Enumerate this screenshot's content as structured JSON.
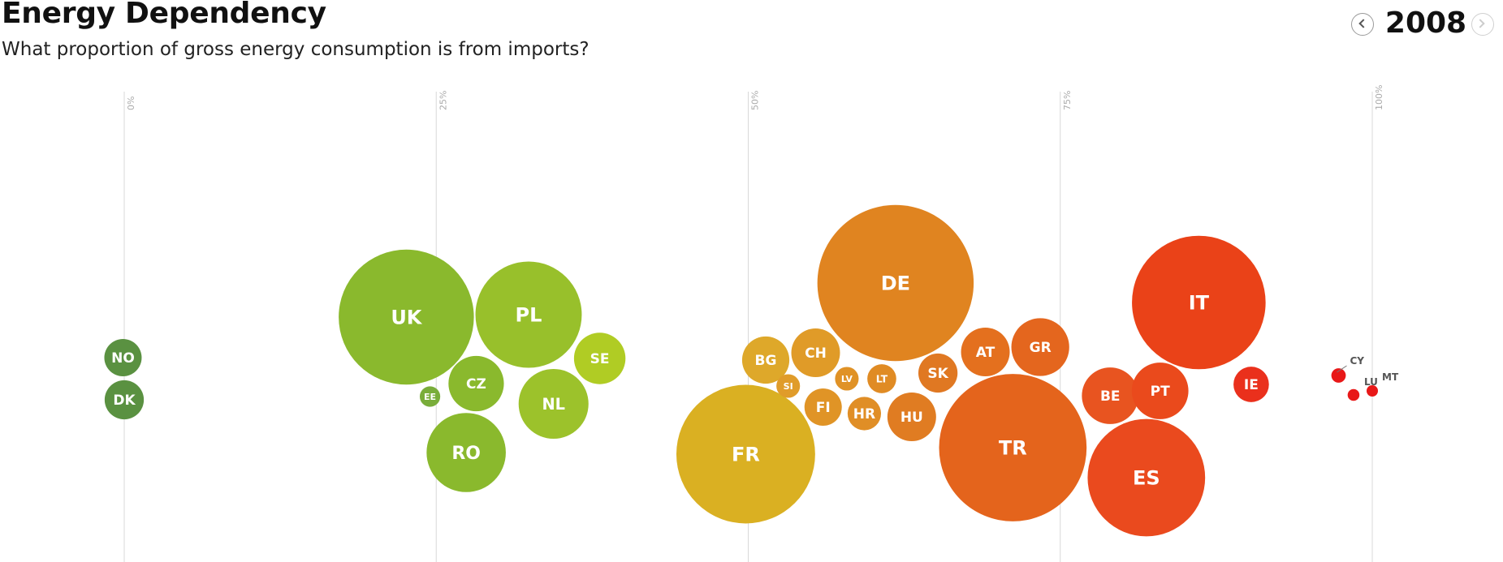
{
  "header": {
    "title": "Energy Dependency",
    "subtitle": "What proportion of gross energy consumption is from imports?"
  },
  "year_nav": {
    "year": "2008",
    "prev_icon": "chevron-left-icon",
    "next_icon": "chevron-right-icon"
  },
  "chart_data": {
    "type": "scatter",
    "title": "Energy Dependency",
    "subtitle": "What proportion of gross energy consumption is from imports?",
    "xlim": [
      0,
      100
    ],
    "x_ticks": [
      "0%",
      "25%",
      "50%",
      "75%",
      "100%"
    ],
    "grid": true,
    "series": [
      {
        "code": "NO",
        "x": -0.1,
        "size": 1.0,
        "color": "#5a9141"
      },
      {
        "code": "DK",
        "x": 0.0,
        "size": 1.1,
        "color": "#5a9141"
      },
      {
        "code": "EE",
        "x": 24.5,
        "size": 0.3,
        "color": "#79ad3a"
      },
      {
        "code": "UK",
        "x": 22.6,
        "size": 13.1,
        "color": "#8ab92d"
      },
      {
        "code": "RO",
        "x": 27.4,
        "size": 4.5,
        "color": "#8ab92d"
      },
      {
        "code": "CZ",
        "x": 28.2,
        "size": 2.2,
        "color": "#8ab92d"
      },
      {
        "code": "PL",
        "x": 32.4,
        "size": 8.1,
        "color": "#98c02b"
      },
      {
        "code": "NL",
        "x": 34.4,
        "size": 3.5,
        "color": "#9cc22b"
      },
      {
        "code": "SE",
        "x": 38.1,
        "size": 1.9,
        "color": "#b0cc24"
      },
      {
        "code": "FR",
        "x": 49.8,
        "size": 13.8,
        "color": "#dab022"
      },
      {
        "code": "BG",
        "x": 51.4,
        "size": 1.6,
        "color": "#dea82a"
      },
      {
        "code": "SI",
        "x": 53.2,
        "size": 0.4,
        "color": "#e09c2a"
      },
      {
        "code": "CH",
        "x": 55.4,
        "size": 1.7,
        "color": "#e09b28"
      },
      {
        "code": "FI",
        "x": 56.0,
        "size": 1.0,
        "color": "#e09426"
      },
      {
        "code": "LV",
        "x": 57.9,
        "size": 0.4,
        "color": "#e09226"
      },
      {
        "code": "HR",
        "x": 59.3,
        "size": 0.8,
        "color": "#e08e26"
      },
      {
        "code": "LT",
        "x": 60.7,
        "size": 0.6,
        "color": "#e08b24"
      },
      {
        "code": "DE",
        "x": 61.8,
        "size": 17.5,
        "color": "#e08420"
      },
      {
        "code": "HU",
        "x": 63.1,
        "size": 1.7,
        "color": "#e07c22"
      },
      {
        "code": "SK",
        "x": 65.2,
        "size": 1.1,
        "color": "#e07822"
      },
      {
        "code": "AT",
        "x": 69.0,
        "size": 1.7,
        "color": "#e4701e"
      },
      {
        "code": "GR",
        "x": 73.4,
        "size": 2.4,
        "color": "#e4661e"
      },
      {
        "code": "TR",
        "x": 71.2,
        "size": 15.6,
        "color": "#e4641c"
      },
      {
        "code": "BE",
        "x": 79.0,
        "size": 2.3,
        "color": "#e85420"
      },
      {
        "code": "ES",
        "x": 81.9,
        "size": 9.9,
        "color": "#ea4a1e"
      },
      {
        "code": "PT",
        "x": 83.0,
        "size": 2.3,
        "color": "#ea4a1c"
      },
      {
        "code": "IT",
        "x": 86.1,
        "size": 12.8,
        "color": "#ea4218"
      },
      {
        "code": "IE",
        "x": 90.3,
        "size": 0.9,
        "color": "#ea301c"
      },
      {
        "code": "CY",
        "x": 97.3,
        "size": 0.15,
        "color": "#e81818"
      },
      {
        "code": "LU",
        "x": 98.5,
        "size": 0.1,
        "color": "#e81818"
      },
      {
        "code": "MT",
        "x": 100.0,
        "size": 0.05,
        "color": "#e81818"
      }
    ]
  }
}
